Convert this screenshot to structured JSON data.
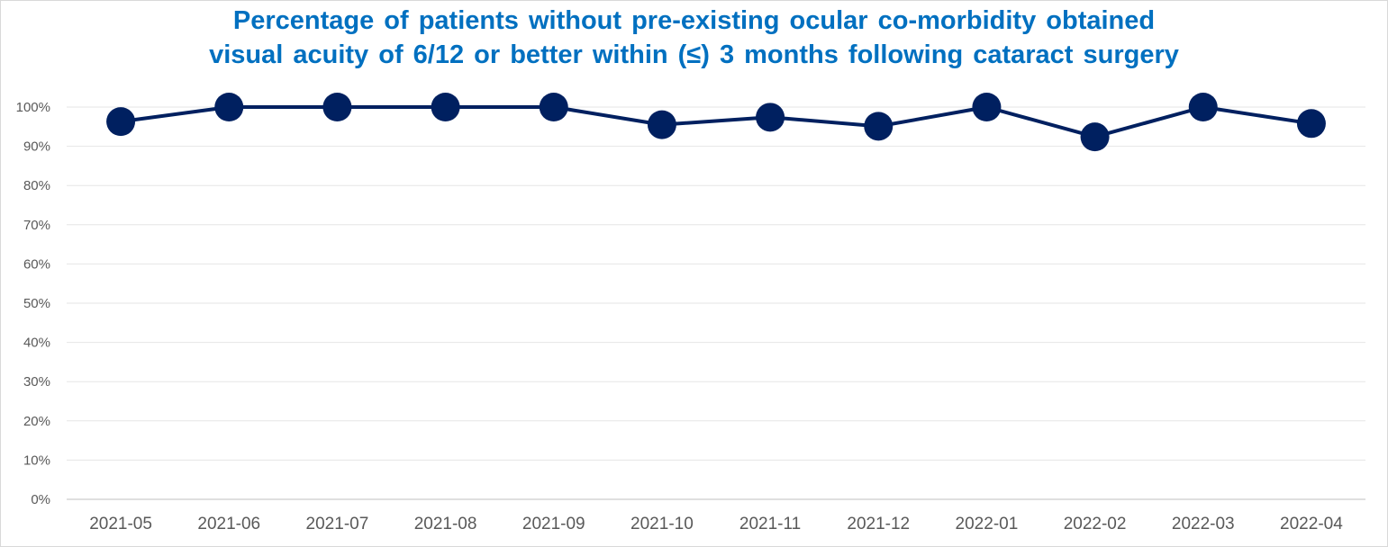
{
  "chart_data": {
    "type": "line",
    "title_lines": [
      "Percentage of patients without pre-existing ocular co-morbidity obtained",
      "visual acuity of 6/12 or better within (≤) 3 months following cataract surgery"
    ],
    "categories": [
      "2021-05",
      "2021-06",
      "2021-07",
      "2021-08",
      "2021-09",
      "2021-10",
      "2021-11",
      "2021-12",
      "2022-01",
      "2022-02",
      "2022-03",
      "2022-04"
    ],
    "series": [
      {
        "values": [
          96.3,
          100,
          100,
          100,
          100,
          95.5,
          97.4,
          95.1,
          100,
          92.4,
          100,
          95.8
        ]
      }
    ],
    "ylim": [
      0,
      100
    ],
    "y_ticks": [
      0,
      10,
      20,
      30,
      40,
      50,
      60,
      70,
      80,
      90,
      100
    ],
    "y_tick_labels": [
      "0%",
      "10%",
      "20%",
      "30%",
      "40%",
      "50%",
      "60%",
      "70%",
      "80%",
      "90%",
      "100%"
    ],
    "grid": true,
    "legend": "none",
    "colors": {
      "title": "#0070c0",
      "line": "#002060",
      "marker": "#002060",
      "grid": "#e6e6e6",
      "axis": "#bfbfbf",
      "tick_text": "#595959"
    }
  }
}
